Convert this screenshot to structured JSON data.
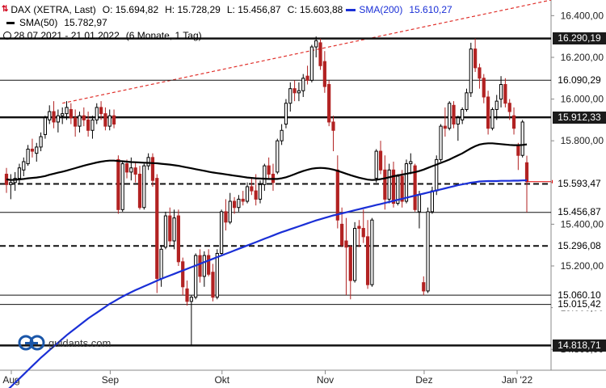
{
  "legend": {
    "symbol_glyph": "⇅",
    "main_label": "DAX (XETRA, Last)",
    "open": "O: 15.694,82",
    "high": "H: 15.728,29",
    "low": "L: 15.456,87",
    "close": "C: 15.603,88",
    "sma200_label": "SMA(200)",
    "sma200_value": "15.610,27",
    "sma50_label": "SMA(50)",
    "sma50_value": "15.782,97",
    "range": "28.07.2021 - 21.01.2022",
    "range_detail": "(6 Monate, 1 Tag)"
  },
  "brand": {
    "name": "guidants.com"
  },
  "colors": {
    "up": "#000000",
    "down": "#b22222",
    "sma200": "#1a2fd6",
    "sma50": "#000000",
    "trend": "#e0302b",
    "last": "#e00000"
  },
  "chart_data": {
    "type": "candlestick",
    "x_labels": [
      "Aug",
      "Sep",
      "Okt",
      "Nov",
      "Dez",
      "Jan '22"
    ],
    "y_ticks": [
      "14.800,00",
      "15.000,00",
      "15.200,00",
      "15.400,00",
      "15.600,00",
      "15.800,00",
      "16.000,00",
      "16.200,00",
      "16.400,00"
    ],
    "ylim": [
      14700,
      16475
    ],
    "candles": [
      [
        15640,
        15670,
        15550,
        15590
      ],
      [
        15590,
        15640,
        15520,
        15600
      ],
      [
        15600,
        15650,
        15560,
        15620
      ],
      [
        15620,
        15690,
        15590,
        15670
      ],
      [
        15660,
        15720,
        15630,
        15700
      ],
      [
        15690,
        15780,
        15680,
        15760
      ],
      [
        15760,
        15810,
        15720,
        15750
      ],
      [
        15740,
        15790,
        15700,
        15770
      ],
      [
        15770,
        15840,
        15750,
        15820
      ],
      [
        15830,
        15920,
        15810,
        15910
      ],
      [
        15900,
        15970,
        15880,
        15940
      ],
      [
        15940,
        15990,
        15860,
        15890
      ],
      [
        15890,
        15950,
        15840,
        15920
      ],
      [
        15920,
        15960,
        15880,
        15930
      ],
      [
        15930,
        15990,
        15900,
        15960
      ],
      [
        15950,
        15980,
        15880,
        15910
      ],
      [
        15910,
        15950,
        15820,
        15870
      ],
      [
        15870,
        15940,
        15840,
        15920
      ],
      [
        15920,
        15960,
        15870,
        15900
      ],
      [
        15900,
        15940,
        15820,
        15850
      ],
      [
        15850,
        15920,
        15810,
        15900
      ],
      [
        15900,
        15980,
        15880,
        15960
      ],
      [
        15960,
        15990,
        15900,
        15930
      ],
      [
        15930,
        15960,
        15850,
        15870
      ],
      [
        15870,
        15950,
        15850,
        15920
      ],
      [
        15920,
        15950,
        15860,
        15880
      ],
      [
        15710,
        15730,
        15450,
        15470
      ],
      [
        15470,
        15700,
        15460,
        15690
      ],
      [
        15690,
        15710,
        15620,
        15650
      ],
      [
        15650,
        15720,
        15610,
        15670
      ],
      [
        15670,
        15700,
        15600,
        15640
      ],
      [
        15640,
        15680,
        15470,
        15480
      ],
      [
        15480,
        15690,
        15470,
        15680
      ],
      [
        15680,
        15740,
        15660,
        15720
      ],
      [
        15720,
        15740,
        15580,
        15610
      ],
      [
        15620,
        15640,
        15070,
        15140
      ],
      [
        15140,
        15300,
        15100,
        15280
      ],
      [
        15290,
        15460,
        15280,
        15440
      ],
      [
        15440,
        15480,
        15300,
        15320
      ],
      [
        15320,
        15470,
        15280,
        15430
      ],
      [
        15440,
        15470,
        15200,
        15220
      ],
      [
        15220,
        15240,
        15060,
        15100
      ],
      [
        15090,
        15130,
        15010,
        15030
      ],
      [
        15030,
        15060,
        14820,
        15050
      ],
      [
        15050,
        15260,
        15040,
        15250
      ],
      [
        15250,
        15280,
        15120,
        15150
      ],
      [
        15150,
        15270,
        15100,
        15250
      ],
      [
        15250,
        15280,
        15150,
        15160
      ],
      [
        15170,
        15210,
        15030,
        15050
      ],
      [
        15050,
        15280,
        15040,
        15260
      ],
      [
        15260,
        15470,
        15250,
        15460
      ],
      [
        15460,
        15520,
        15370,
        15410
      ],
      [
        15410,
        15550,
        15400,
        15510
      ],
      [
        15510,
        15530,
        15450,
        15480
      ],
      [
        15480,
        15540,
        15460,
        15520
      ],
      [
        15520,
        15560,
        15490,
        15510
      ],
      [
        15510,
        15600,
        15500,
        15580
      ],
      [
        15580,
        15620,
        15540,
        15560
      ],
      [
        15560,
        15640,
        15490,
        15520
      ],
      [
        15520,
        15610,
        15500,
        15590
      ],
      [
        15590,
        15690,
        15560,
        15680
      ],
      [
        15680,
        15720,
        15620,
        15640
      ],
      [
        15640,
        15690,
        15560,
        15600
      ],
      [
        15650,
        15810,
        15640,
        15800
      ],
      [
        15800,
        15880,
        15780,
        15850
      ],
      [
        15880,
        16000,
        15860,
        15980
      ],
      [
        15980,
        16080,
        15940,
        16050
      ],
      [
        16050,
        16090,
        15990,
        16030
      ],
      [
        16030,
        16080,
        15990,
        16040
      ],
      [
        16040,
        16120,
        16010,
        16100
      ],
      [
        16110,
        16160,
        16070,
        16090
      ],
      [
        16090,
        16260,
        16080,
        16250
      ],
      [
        16250,
        16300,
        16200,
        16280
      ],
      [
        16270,
        16290,
        16140,
        16160
      ],
      [
        16180,
        16230,
        16030,
        16060
      ],
      [
        16070,
        16090,
        15870,
        15890
      ],
      [
        15890,
        15920,
        15750,
        15850
      ],
      [
        15660,
        15730,
        15380,
        15420
      ],
      [
        15400,
        15480,
        15290,
        15300
      ],
      [
        15320,
        15430,
        15060,
        15290
      ],
      [
        15290,
        15300,
        15040,
        15130
      ],
      [
        15130,
        15410,
        15120,
        15380
      ],
      [
        15390,
        15420,
        15290,
        15380
      ],
      [
        15380,
        15470,
        15310,
        15340
      ],
      [
        15340,
        15420,
        15090,
        15110
      ],
      [
        15110,
        15430,
        15100,
        15420
      ],
      [
        15620,
        15760,
        15600,
        15750
      ],
      [
        15750,
        15800,
        15640,
        15660
      ],
      [
        15660,
        15730,
        15470,
        15520
      ],
      [
        15520,
        15690,
        15500,
        15660
      ],
      [
        15660,
        15700,
        15480,
        15500
      ],
      [
        15500,
        15640,
        15490,
        15630
      ],
      [
        15630,
        15660,
        15480,
        15510
      ],
      [
        15510,
        15710,
        15500,
        15690
      ],
      [
        15690,
        15740,
        15640,
        15700
      ],
      [
        15680,
        15690,
        15460,
        15470
      ],
      [
        15460,
        15560,
        15380,
        15540
      ],
      [
        15120,
        15150,
        15060,
        15080
      ],
      [
        15080,
        15480,
        15070,
        15460
      ],
      [
        15460,
        15580,
        15450,
        15560
      ],
      [
        15560,
        15730,
        15540,
        15710
      ],
      [
        15710,
        15880,
        15700,
        15870
      ],
      [
        15870,
        15960,
        15820,
        15860
      ],
      [
        15860,
        15990,
        15850,
        15980
      ],
      [
        15970,
        15990,
        15860,
        15880
      ],
      [
        15880,
        15920,
        15800,
        15910
      ],
      [
        15900,
        15960,
        15880,
        15950
      ],
      [
        15950,
        16050,
        15940,
        16030
      ],
      [
        16030,
        16270,
        16010,
        16240
      ],
      [
        16240,
        16290,
        16130,
        16150
      ],
      [
        16150,
        16170,
        16050,
        16100
      ],
      [
        16100,
        16120,
        15980,
        16010
      ],
      [
        16010,
        16040,
        15830,
        15860
      ],
      [
        15860,
        15960,
        15850,
        15950
      ],
      [
        15950,
        16020,
        15900,
        15990
      ],
      [
        16000,
        16110,
        15960,
        16070
      ],
      [
        16070,
        16100,
        15960,
        15980
      ],
      [
        15980,
        16000,
        15900,
        15940
      ],
      [
        15920,
        15960,
        15830,
        15860
      ],
      [
        15780,
        15790,
        15660,
        15730
      ],
      [
        15730,
        15900,
        15720,
        15890
      ],
      [
        15694.82,
        15728.29,
        15456.87,
        15603.88
      ]
    ],
    "sma50": [
      15615,
      15612,
      15613,
      15615,
      15617,
      15620,
      15622,
      15624,
      15627,
      15631,
      15637,
      15642,
      15647,
      15652,
      15657,
      15663,
      15669,
      15675,
      15681,
      15686,
      15691,
      15696,
      15700,
      15703,
      15705,
      15705,
      15703,
      15702,
      15700,
      15698,
      15697,
      15696,
      15695,
      15694,
      15693,
      15692,
      15690,
      15688,
      15686,
      15683,
      15680,
      15676,
      15672,
      15668,
      15664,
      15660,
      15656,
      15652,
      15648,
      15645,
      15642,
      15639,
      15636,
      15633,
      15630,
      15627,
      15624,
      15622,
      15620,
      15619,
      15618,
      15617,
      15617,
      15617,
      15620,
      15625,
      15632,
      15640,
      15648,
      15655,
      15661,
      15666,
      15669,
      15670,
      15669,
      15666,
      15662,
      15656,
      15649,
      15642,
      15635,
      15629,
      15623,
      15618,
      15614,
      15612,
      15613,
      15616,
      15620,
      15625,
      15630,
      15634,
      15638,
      15642,
      15646,
      15650,
      15655,
      15662,
      15670,
      15678,
      15686,
      15694,
      15702,
      15710,
      15720,
      15730,
      15740,
      15752,
      15764,
      15774,
      15782,
      15786,
      15788,
      15788,
      15786,
      15784,
      15782,
      15780,
      15779,
      15779,
      15780,
      15782.97
    ],
    "sma200": [
      14600,
      14620,
      14640,
      14660,
      14680,
      14700,
      14720,
      14740,
      14760,
      14778,
      14796,
      14814,
      14832,
      14850,
      14868,
      14884,
      14900,
      14916,
      14932,
      14948,
      14962,
      14976,
      14990,
      15004,
      15018,
      15030,
      15042,
      15053,
      15064,
      15074,
      15084,
      15093,
      15102,
      15111,
      15120,
      15129,
      15138,
      15146,
      15154,
      15162,
      15170,
      15178,
      15186,
      15194,
      15202,
      15210,
      15218,
      15226,
      15234,
      15242,
      15250,
      15258,
      15266,
      15274,
      15282,
      15290,
      15298,
      15306,
      15314,
      15322,
      15330,
      15338,
      15346,
      15354,
      15362,
      15369,
      15376,
      15383,
      15390,
      15397,
      15404,
      15411,
      15418,
      15424,
      15430,
      15436,
      15442,
      15447,
      15452,
      15457,
      15462,
      15467,
      15472,
      15477,
      15482,
      15487,
      15492,
      15497,
      15502,
      15507,
      15512,
      15517,
      15522,
      15527,
      15532,
      15537,
      15542,
      15547,
      15552,
      15557,
      15562,
      15567,
      15572,
      15577,
      15582,
      15587,
      15591,
      15595,
      15599,
      15602,
      15605,
      15606,
      15607,
      15607,
      15607,
      15608,
      15608,
      15608,
      15609,
      15609,
      15610,
      15610.27
    ],
    "trend_start": 15980,
    "trend_end": 16475,
    "levels": [
      {
        "value": 16290.19,
        "label": "16.290,19",
        "style": "solid-thick"
      },
      {
        "value": 16090.29,
        "label": "16.090,29",
        "style": "solid-thin"
      },
      {
        "value": 15912.33,
        "label": "15.912,33",
        "style": "solid-thick"
      },
      {
        "value": 15593.47,
        "label": "15.593,47",
        "style": "dashed"
      },
      {
        "value": 15456.87,
        "label": "15.456,87",
        "style": "solid-thin"
      },
      {
        "value": 15296.08,
        "label": "15.296,08",
        "style": "dashed"
      },
      {
        "value": 15060.1,
        "label": "15.060,10",
        "style": "solid-thin"
      },
      {
        "value": 15015.42,
        "label": "15.015,42",
        "style": "solid-thin"
      },
      {
        "value": 14818.71,
        "label": "14.818,71",
        "style": "solid-thick"
      }
    ],
    "last_value": 15603.88
  }
}
